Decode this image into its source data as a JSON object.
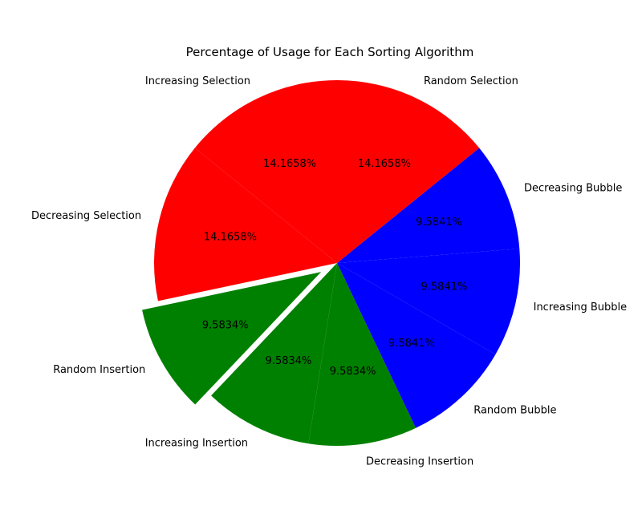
{
  "chart_data": {
    "type": "pie",
    "title": "Percentage of Usage for Each Sorting Algorithm",
    "slices": [
      {
        "label": "Increasing Selection",
        "value": 14.1658,
        "display": "14.1658%",
        "color": "#ff0000",
        "explode": 0
      },
      {
        "label": "Decreasing Selection",
        "value": 14.1658,
        "display": "14.1658%",
        "color": "#ff0000",
        "explode": 0
      },
      {
        "label": "Random Insertion",
        "value": 9.5834,
        "display": "9.5834%",
        "color": "#008000",
        "explode": 0.1
      },
      {
        "label": "Increasing Insertion",
        "value": 9.5834,
        "display": "9.5834%",
        "color": "#008000",
        "explode": 0
      },
      {
        "label": "Decreasing Insertion",
        "value": 9.5834,
        "display": "9.5834%",
        "color": "#008000",
        "explode": 0
      },
      {
        "label": "Random Bubble",
        "value": 9.5841,
        "display": "9.5841%",
        "color": "#0000ff",
        "explode": 0
      },
      {
        "label": "Increasing Bubble",
        "value": 9.5841,
        "display": "9.5841%",
        "color": "#0000ff",
        "explode": 0
      },
      {
        "label": "Decreasing Bubble",
        "value": 9.5841,
        "display": "9.5841%",
        "color": "#0000ff",
        "explode": 0
      },
      {
        "label": "Random Selection",
        "value": 14.1658,
        "display": "14.1658%",
        "color": "#ff0000",
        "explode": 0
      }
    ],
    "start_angle_deg": 90,
    "direction": "counterclockwise",
    "legend": "none"
  }
}
